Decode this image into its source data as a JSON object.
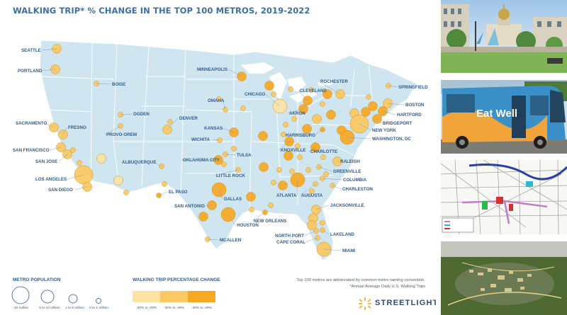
{
  "title": "WALKING TRIP* % CHANGE IN THE TOP 100 METROS, 2019-2022",
  "colors": {
    "land": "#cfe6f1",
    "border": "#ffffff",
    "tier_light": "#fde3a6",
    "tier_mid": "#fbc861",
    "tier_dark": "#f7a823",
    "label": "#2f5d8c"
  },
  "labeled_metros": [
    {
      "name": "SEATTLE",
      "tier": "mid",
      "size": "md"
    },
    {
      "name": "PORTLAND",
      "tier": "mid",
      "size": "md"
    },
    {
      "name": "BOISE",
      "tier": "mid",
      "size": "sm"
    },
    {
      "name": "MINNEAPOLIS",
      "tier": "dark",
      "size": "md"
    },
    {
      "name": "ROCHESTER",
      "tier": "mid",
      "size": "md"
    },
    {
      "name": "SPRINGFIELD",
      "tier": "mid",
      "size": "sm"
    },
    {
      "name": "CLEVELAND",
      "tier": "dark",
      "size": "md"
    },
    {
      "name": "CHICAGO",
      "tier": "light",
      "size": "lg"
    },
    {
      "name": "BOSTON",
      "tier": "mid",
      "size": "md"
    },
    {
      "name": "OMAHA",
      "tier": "mid",
      "size": "sm"
    },
    {
      "name": "AKRON",
      "tier": "dark",
      "size": "md"
    },
    {
      "name": "HARTFORD",
      "tier": "dark",
      "size": "md"
    },
    {
      "name": "BRIDGEPORT",
      "tier": "dark",
      "size": "md"
    },
    {
      "name": "OGDEN",
      "tier": "mid",
      "size": "sm"
    },
    {
      "name": "DENVER",
      "tier": "mid",
      "size": "md"
    },
    {
      "name": "SACRAMENTO",
      "tier": "mid",
      "size": "md"
    },
    {
      "name": "FRESNO",
      "tier": "mid",
      "size": "md"
    },
    {
      "name": "PROVO-OREM",
      "tier": "mid",
      "size": "sm"
    },
    {
      "name": "KANSAS",
      "tier": "dark",
      "size": "md"
    },
    {
      "name": "NEW YORK",
      "tier": "mid",
      "size": "xl"
    },
    {
      "name": "HARRISBURG",
      "tier": "dark",
      "size": "sm"
    },
    {
      "name": "WASHINGTON, DC",
      "tier": "dark",
      "size": "lg"
    },
    {
      "name": "WICHITA",
      "tier": "mid",
      "size": "sm"
    },
    {
      "name": "SAN FRANCISCO",
      "tier": "mid",
      "size": "md"
    },
    {
      "name": "KNOXVILLE",
      "tier": "dark",
      "size": "md"
    },
    {
      "name": "CHARLOTTE",
      "tier": "dark",
      "size": "md"
    },
    {
      "name": "TULSA",
      "tier": "mid",
      "size": "sm"
    },
    {
      "name": "SAN JOSE",
      "tier": "mid",
      "size": "md"
    },
    {
      "name": "OKLAHOMA CITY",
      "tier": "dark",
      "size": "md"
    },
    {
      "name": "ALBUQUERQUE",
      "tier": "mid",
      "size": "sm"
    },
    {
      "name": "RALEIGH",
      "tier": "mid",
      "size": "md"
    },
    {
      "name": "LITTLE ROCK",
      "tier": "mid",
      "size": "sm"
    },
    {
      "name": "GREENVILLE",
      "tier": "mid",
      "size": "sm"
    },
    {
      "name": "LOS ANGELES",
      "tier": "mid",
      "size": "xl"
    },
    {
      "name": "COLUMBIA",
      "tier": "mid",
      "size": "sm"
    },
    {
      "name": "ATLANTA",
      "tier": "dark",
      "size": "lg"
    },
    {
      "name": "AUGUSTA",
      "tier": "mid",
      "size": "sm"
    },
    {
      "name": "CHARLESTON",
      "tier": "mid",
      "size": "sm"
    },
    {
      "name": "SAN DIEGO",
      "tier": "mid",
      "size": "md"
    },
    {
      "name": "EL PASO",
      "tier": "dark",
      "size": "sm"
    },
    {
      "name": "DALLAS",
      "tier": "dark",
      "size": "lg"
    },
    {
      "name": "JACKSONVILLE",
      "tier": "mid",
      "size": "md"
    },
    {
      "name": "SAN ANTONIO",
      "tier": "dark",
      "size": "md"
    },
    {
      "name": "NEW ORLEANS",
      "tier": "dark",
      "size": "sm"
    },
    {
      "name": "HOUSTON",
      "tier": "dark",
      "size": "lg"
    },
    {
      "name": "LAKELAND",
      "tier": "mid",
      "size": "sm"
    },
    {
      "name": "NORTH PORT",
      "tier": "mid",
      "size": "sm"
    },
    {
      "name": "CAPE CORAL",
      "tier": "mid",
      "size": "sm"
    },
    {
      "name": "MCALLEN",
      "tier": "mid",
      "size": "sm"
    },
    {
      "name": "MIAMI",
      "tier": "mid",
      "size": "lg"
    }
  ],
  "legend": {
    "population_title": "METRO POPULATION",
    "population_sizes": [
      "10 million",
      "5 to 10 million",
      "1 to 5 million",
      "0 to 1 million"
    ],
    "change_title": "WALKING TRIP PERCENTAGE CHANGE",
    "change_bins": [
      "-20% to -29%",
      "-30% to -39%",
      "-40% to -49%"
    ]
  },
  "notes": {
    "line1": "Top 100 metros are abbreviated by common metro naming convention.",
    "line2": "*Annual Average Daily U.S. Walking Trips"
  },
  "brand": {
    "name": "STREETLIGHT",
    "icon": "streetlight-logo-icon"
  },
  "photos": [
    {
      "subject": "state capitol building with fountain"
    },
    {
      "subject": "city bus"
    },
    {
      "subject": "street map plan"
    },
    {
      "subject": "aerial view of development"
    }
  ],
  "photo_texts": {
    "bus_brand": "Eat Well"
  }
}
